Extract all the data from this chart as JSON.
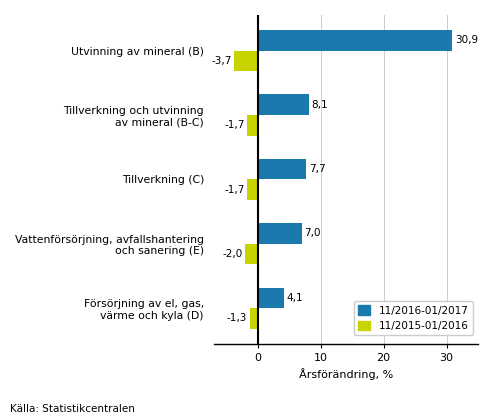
{
  "categories": [
    "Utvinning av mineral (B)",
    "Tillverkning och utvinning\nav mineral (B-C)",
    "Tillverkning (C)",
    "Vattenförsörjning, avfallshantering\noch sanering (E)",
    "Försörjning av el, gas,\nvärme och kyla (D)"
  ],
  "series1_values": [
    30.9,
    8.1,
    7.7,
    7.0,
    4.1
  ],
  "series2_values": [
    -3.7,
    -1.7,
    -1.7,
    -2.0,
    -1.3
  ],
  "series1_label": "11/2016-01/2017",
  "series2_label": "11/2015-01/2016",
  "series1_color": "#1a7aad",
  "series2_color": "#c8d400",
  "xlabel": "Årsförändring, %",
  "source": "Källa: Statistikcentralen",
  "bar_height": 0.32,
  "background_color": "#ffffff",
  "grid_color": "#cccccc"
}
